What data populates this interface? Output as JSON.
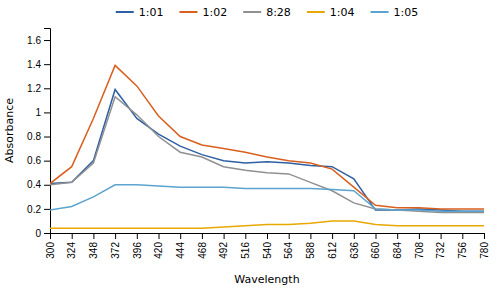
{
  "chart_data": {
    "type": "line",
    "x": [
      300,
      324,
      348,
      372,
      396,
      420,
      444,
      468,
      492,
      516,
      540,
      564,
      588,
      612,
      636,
      660,
      684,
      708,
      732,
      756,
      780
    ],
    "series": [
      {
        "name": "1:01",
        "color": "#2E5FA3",
        "values": [
          0.41,
          0.42,
          0.6,
          1.19,
          0.95,
          0.82,
          0.72,
          0.65,
          0.6,
          0.58,
          0.59,
          0.58,
          0.56,
          0.55,
          0.45,
          0.19,
          0.19,
          0.2,
          0.19,
          0.18,
          0.18
        ]
      },
      {
        "name": "1:02",
        "color": "#D95F1E",
        "values": [
          0.41,
          0.55,
          0.95,
          1.39,
          1.22,
          0.97,
          0.8,
          0.73,
          0.7,
          0.67,
          0.63,
          0.6,
          0.58,
          0.53,
          0.38,
          0.23,
          0.21,
          0.21,
          0.2,
          0.2,
          0.2
        ]
      },
      {
        "name": "8:28",
        "color": "#909090",
        "values": [
          0.4,
          0.42,
          0.58,
          1.13,
          0.98,
          0.8,
          0.67,
          0.63,
          0.55,
          0.52,
          0.5,
          0.49,
          0.42,
          0.35,
          0.25,
          0.2,
          0.19,
          0.18,
          0.17,
          0.17,
          0.17
        ]
      },
      {
        "name": "1:04",
        "color": "#E8A800",
        "values": [
          0.04,
          0.04,
          0.04,
          0.04,
          0.04,
          0.04,
          0.04,
          0.04,
          0.05,
          0.06,
          0.07,
          0.07,
          0.08,
          0.1,
          0.1,
          0.07,
          0.06,
          0.06,
          0.06,
          0.06,
          0.06
        ]
      },
      {
        "name": "1:05",
        "color": "#5BA4CF",
        "values": [
          0.19,
          0.22,
          0.3,
          0.4,
          0.4,
          0.39,
          0.38,
          0.38,
          0.38,
          0.37,
          0.37,
          0.37,
          0.37,
          0.36,
          0.35,
          0.2,
          0.19,
          0.19,
          0.18,
          0.18,
          0.18
        ]
      }
    ],
    "xlabel": "Wavelength",
    "ylabel": "Absorbance",
    "xlim": [
      300,
      780
    ],
    "xticks": [
      300,
      324,
      348,
      372,
      396,
      420,
      444,
      468,
      492,
      516,
      540,
      564,
      588,
      612,
      636,
      660,
      684,
      708,
      732,
      756,
      780
    ],
    "ylim": [
      0,
      1.7
    ],
    "yticks": [
      0,
      0.2,
      0.4,
      0.6,
      0.8,
      1,
      1.2,
      1.4,
      1.6
    ],
    "grid": false,
    "legend": "top"
  }
}
